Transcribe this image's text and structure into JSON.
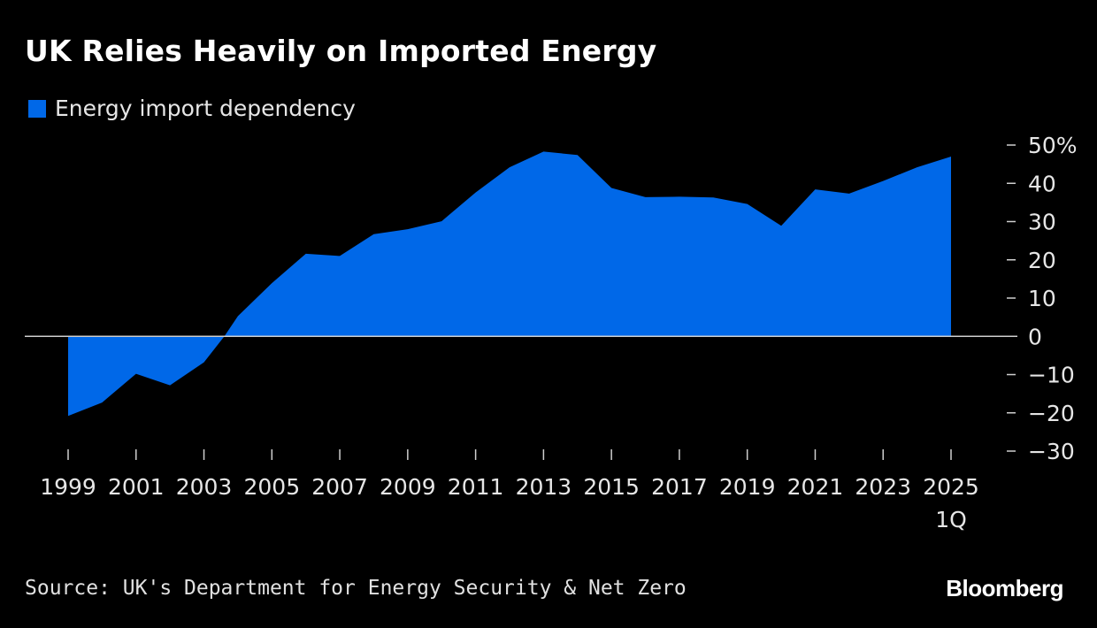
{
  "chart_data": {
    "type": "area",
    "title": "UK Relies Heavily on Imported Energy",
    "legend": [
      {
        "label": "Energy import dependency",
        "color": "#0068e8"
      }
    ],
    "series": [
      {
        "name": "Energy import dependency",
        "color": "#0068e8",
        "x": [
          1999,
          2000,
          2001,
          2002,
          2003,
          2003.6,
          2004,
          2005,
          2006,
          2007,
          2008,
          2009,
          2010,
          2011,
          2012,
          2013,
          2014,
          2015,
          2016,
          2017,
          2018,
          2019,
          2020,
          2021,
          2022,
          2023,
          2024,
          2025
        ],
        "values": [
          -20.8,
          -17.3,
          -9.8,
          -12.8,
          -6.8,
          0,
          5.3,
          13.9,
          21.6,
          21.0,
          26.7,
          28.0,
          30.1,
          37.6,
          44.2,
          48.3,
          47.4,
          38.8,
          36.4,
          36.5,
          36.3,
          34.6,
          28.9,
          38.4,
          37.3,
          40.6,
          44.2,
          47.0
        ]
      }
    ],
    "x_ticks": [
      1999,
      2001,
      2003,
      2005,
      2007,
      2009,
      2011,
      2013,
      2015,
      2017,
      2019,
      2021,
      2023,
      2025
    ],
    "x_tick_labels": [
      "1999",
      "2001",
      "2003",
      "2005",
      "2007",
      "2009",
      "2011",
      "2013",
      "2015",
      "2017",
      "2019",
      "2021",
      "2023",
      "2025"
    ],
    "x_sublabel": "1Q",
    "y_ticks": [
      50,
      40,
      30,
      20,
      10,
      0,
      -10,
      -20,
      -30
    ],
    "y_tick_labels": [
      "50%",
      "40",
      "30",
      "20",
      "10",
      "0",
      "-10",
      "-20",
      "-30"
    ],
    "xlim": [
      1999,
      2025
    ],
    "ylim": [
      -30,
      50
    ],
    "xlabel": "",
    "ylabel": "",
    "grid": false
  },
  "source": "Source: UK's Department for Energy Security & Net Zero",
  "brand": "Bloomberg"
}
